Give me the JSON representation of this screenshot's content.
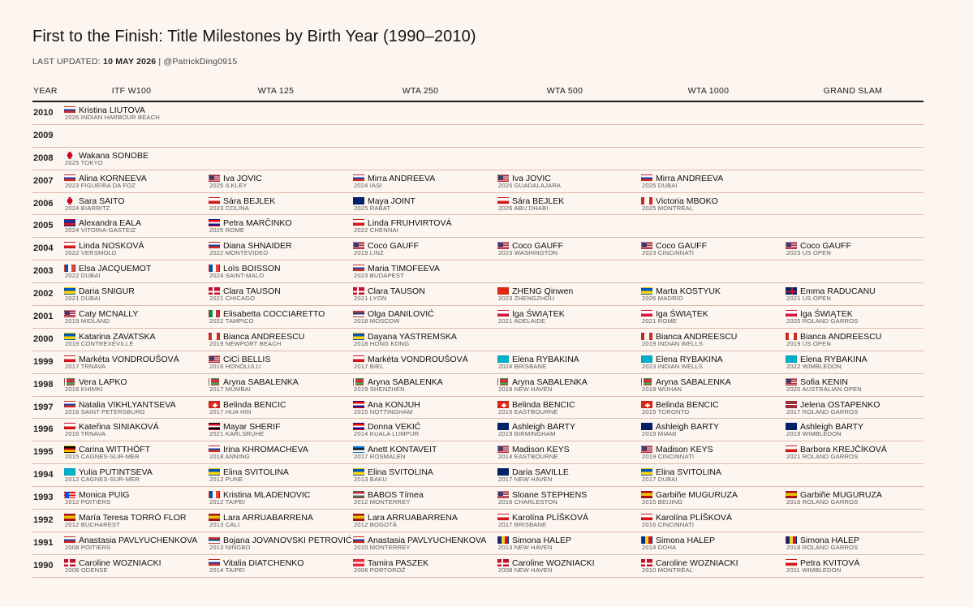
{
  "title": "First to the Finish: Title Milestones by Birth Year (1990–2010)",
  "last_updated_label": "LAST UPDATED:",
  "last_updated_date": "10 MAY 2026",
  "author": "| @PatrickDing0915",
  "columns": [
    "YEAR",
    "ITF W100",
    "WTA 125",
    "WTA 250",
    "WTA 500",
    "WTA 1000",
    "GRAND SLAM"
  ],
  "rows": [
    {
      "year": "2010",
      "cells": [
        {
          "name": "Kristina LIUTOVA",
          "event": "2026 INDIAN HARBOUR BEACH",
          "flag": "RUS"
        },
        null,
        null,
        null,
        null,
        null
      ]
    },
    {
      "year": "2009",
      "cells": [
        null,
        null,
        null,
        null,
        null,
        null
      ]
    },
    {
      "year": "2008",
      "cells": [
        {
          "name": "Wakana SONOBE",
          "event": "2025 TOKYO",
          "flag": "JPN"
        },
        null,
        null,
        null,
        null,
        null
      ]
    },
    {
      "year": "2007",
      "cells": [
        {
          "name": "Alina KORNEEVA",
          "event": "2023 FIGUEIRA DA FOZ",
          "flag": "RUS"
        },
        {
          "name": "Iva JOVIC",
          "event": "2025 ILKLEY",
          "flag": "USA"
        },
        {
          "name": "Mirra ANDREEVA",
          "event": "2024 IAȘI",
          "flag": "RUS"
        },
        {
          "name": "Iva JOVIC",
          "event": "2025 GUADALAJARA",
          "flag": "USA"
        },
        {
          "name": "Mirra ANDREEVA",
          "event": "2025 DUBAI",
          "flag": "RUS"
        },
        null
      ]
    },
    {
      "year": "2006",
      "cells": [
        {
          "name": "Sara SAITO",
          "event": "2024 BIARRITZ",
          "flag": "JPN"
        },
        {
          "name": "Sára BEJLEK",
          "event": "2023 COLINA",
          "flag": "CZE"
        },
        {
          "name": "Maya JOINT",
          "event": "2025 RABAT",
          "flag": "AUS"
        },
        {
          "name": "Sára BEJLEK",
          "event": "2026 ABU DHABI",
          "flag": "CZE"
        },
        {
          "name": "Victoria MBOKO",
          "event": "2025 MONTRÉAL",
          "flag": "CAN"
        },
        null
      ]
    },
    {
      "year": "2005",
      "cells": [
        {
          "name": "Alexandra EALA",
          "event": "2024 VITORIA-GASTEIZ",
          "flag": "PHI"
        },
        {
          "name": "Petra MARČINKO",
          "event": "2025 ROME",
          "flag": "CRO"
        },
        {
          "name": "Linda FRUHVIRTOVÁ",
          "event": "2022 CHENNAI",
          "flag": "CZE"
        },
        null,
        null,
        null
      ]
    },
    {
      "year": "2004",
      "cells": [
        {
          "name": "Linda NOSKOVÁ",
          "event": "2022 VERSMOLD",
          "flag": "CZE"
        },
        {
          "name": "Diana SHNAIDER",
          "event": "2022 MONTEVIDEO",
          "flag": "RUS"
        },
        {
          "name": "Coco GAUFF",
          "event": "2019 LINZ",
          "flag": "USA"
        },
        {
          "name": "Coco GAUFF",
          "event": "2023 WASHINGTON",
          "flag": "USA"
        },
        {
          "name": "Coco GAUFF",
          "event": "2023 CINCINNATI",
          "flag": "USA"
        },
        {
          "name": "Coco GAUFF",
          "event": "2023 US OPEN",
          "flag": "USA"
        }
      ]
    },
    {
      "year": "2003",
      "cells": [
        {
          "name": "Elsa JACQUEMOT",
          "event": "2022 DUBAI",
          "flag": "FRA"
        },
        {
          "name": "Loïs BOISSON",
          "event": "2024 SAINT-MALO",
          "flag": "FRA"
        },
        {
          "name": "Maria TIMOFEEVA",
          "event": "2023 BUDAPEST",
          "flag": "RUS"
        },
        null,
        null,
        null
      ]
    },
    {
      "year": "2002",
      "cells": [
        {
          "name": "Daria SNIGUR",
          "event": "2021 DUBAI",
          "flag": "UKR"
        },
        {
          "name": "Clara TAUSON",
          "event": "2021 CHICAGO",
          "flag": "DEN"
        },
        {
          "name": "Clara TAUSON",
          "event": "2021 LYON",
          "flag": "DEN"
        },
        {
          "name": "ZHENG Qinwen",
          "event": "2023 ZHENGZHOU",
          "flag": "CHN"
        },
        {
          "name": "Marta KOSTYUK",
          "event": "2026 MADRID",
          "flag": "UKR"
        },
        {
          "name": "Emma RADUCANU",
          "event": "2021 US OPEN",
          "flag": "GBR"
        }
      ]
    },
    {
      "year": "2001",
      "cells": [
        {
          "name": "Caty MCNALLY",
          "event": "2019 MIDLAND",
          "flag": "USA"
        },
        {
          "name": "Elisabetta COCCIARETTO",
          "event": "2022 TAMPICO",
          "flag": "ITA"
        },
        {
          "name": "Olga DANILOVIĆ",
          "event": "2018 MOSCOW",
          "flag": "SRB"
        },
        {
          "name": "Iga ŚWIĄTEK",
          "event": "2021 ADELAIDE",
          "flag": "POL"
        },
        {
          "name": "Iga ŚWIĄTEK",
          "event": "2021 ROME",
          "flag": "POL"
        },
        {
          "name": "Iga ŚWIĄTEK",
          "event": "2020 ROLAND GARROS",
          "flag": "POL"
        }
      ]
    },
    {
      "year": "2000",
      "cells": [
        {
          "name": "Katarina ZAVATSKA",
          "event": "2019 CONTREXÉVILLE",
          "flag": "UKR"
        },
        {
          "name": "Bianca ANDREESCU",
          "event": "2019 NEWPORT BEACH",
          "flag": "CAN"
        },
        {
          "name": "Dayana YASTREMSKA",
          "event": "2018 HONG KONG",
          "flag": "UKR"
        },
        null,
        {
          "name": "Bianca ANDREESCU",
          "event": "2019 INDIAN WELLS",
          "flag": "CAN"
        },
        {
          "name": "Bianca ANDREESCU",
          "event": "2019 US OPEN",
          "flag": "CAN"
        }
      ]
    },
    {
      "year": "1999",
      "cells": [
        {
          "name": "Markéta VONDROUŠOVÁ",
          "event": "2017 TRNAVA",
          "flag": "CZE"
        },
        {
          "name": "CiCi BELLIS",
          "event": "2016 HONOLULU",
          "flag": "USA"
        },
        {
          "name": "Markéta VONDROUŠOVÁ",
          "event": "2017 BIEL",
          "flag": "CZE"
        },
        {
          "name": "Elena RYBAKINA",
          "event": "2024 BRISBANE",
          "flag": "KAZ"
        },
        {
          "name": "Elena RYBAKINA",
          "event": "2023 INDIAN WELLS",
          "flag": "KAZ"
        },
        {
          "name": "Elena RYBAKINA",
          "event": "2022 WIMBLEDON",
          "flag": "KAZ"
        }
      ]
    },
    {
      "year": "1998",
      "cells": [
        {
          "name": "Vera LAPKO",
          "event": "2018 KHIMKI",
          "flag": "BLR"
        },
        {
          "name": "Aryna SABALENKA",
          "event": "2017 MUMBAI",
          "flag": "BLR"
        },
        {
          "name": "Aryna SABALENKA",
          "event": "2019 SHENZHEN",
          "flag": "BLR"
        },
        {
          "name": "Aryna SABALENKA",
          "event": "2018 NEW HAVEN",
          "flag": "BLR"
        },
        {
          "name": "Aryna SABALENKA",
          "event": "2018 WUHAN",
          "flag": "BLR"
        },
        {
          "name": "Sofia KENIN",
          "event": "2020 AUSTRALIAN OPEN",
          "flag": "USA"
        }
      ]
    },
    {
      "year": "1997",
      "cells": [
        {
          "name": "Natalia VIKHLYANTSEVA",
          "event": "2016 SAINT PETERSBURG",
          "flag": "RUS"
        },
        {
          "name": "Belinda BENCIC",
          "event": "2017 HUA HIN",
          "flag": "SUI"
        },
        {
          "name": "Ana KONJUH",
          "event": "2015 NOTTINGHAM",
          "flag": "CRO"
        },
        {
          "name": "Belinda BENCIC",
          "event": "2015 EASTBOURNE",
          "flag": "SUI"
        },
        {
          "name": "Belinda BENCIC",
          "event": "2015 TORONTO",
          "flag": "SUI"
        },
        {
          "name": "Jelena OSTAPENKO",
          "event": "2017 ROLAND GARROS",
          "flag": "LAT"
        }
      ]
    },
    {
      "year": "1996",
      "cells": [
        {
          "name": "Kateřina SINIAKOVÁ",
          "event": "2016 TRNAVA",
          "flag": "CZE"
        },
        {
          "name": "Mayar SHERIF",
          "event": "2021 KARLSRUHE",
          "flag": "EGY"
        },
        {
          "name": "Donna VEKIĆ",
          "event": "2014 KUALA LUMPUR",
          "flag": "CRO"
        },
        {
          "name": "Ashleigh BARTY",
          "event": "2019 BIRMINGHAM",
          "flag": "AUS"
        },
        {
          "name": "Ashleigh BARTY",
          "event": "2019 MIAMI",
          "flag": "AUS"
        },
        {
          "name": "Ashleigh BARTY",
          "event": "2019 WIMBLEDON",
          "flag": "AUS"
        }
      ]
    },
    {
      "year": "1995",
      "cells": [
        {
          "name": "Carina WITTHÖFT",
          "event": "2015 CAGNES-SUR-MER",
          "flag": "GER"
        },
        {
          "name": "Irina KHROMACHEVA",
          "event": "2018 ANNING",
          "flag": "RUS"
        },
        {
          "name": "Anett KONTAVEIT",
          "event": "2017 ROSMALEN",
          "flag": "EST"
        },
        {
          "name": "Madison KEYS",
          "event": "2014 EASTBOURNE",
          "flag": "USA"
        },
        {
          "name": "Madison KEYS",
          "event": "2019 CINCINNATI",
          "flag": "USA"
        },
        {
          "name": "Barbora KREJČÍKOVÁ",
          "event": "2021 ROLAND GARROS",
          "flag": "CZE"
        }
      ]
    },
    {
      "year": "1994",
      "cells": [
        {
          "name": "Yulia PUTINTSEVA",
          "event": "2012 CAGNES-SUR-MER",
          "flag": "KAZ"
        },
        {
          "name": "Elina SVITOLINA",
          "event": "2012 PUNE",
          "flag": "UKR"
        },
        {
          "name": "Elina SVITOLINA",
          "event": "2013 BAKU",
          "flag": "UKR"
        },
        {
          "name": "Daria SAVILLE",
          "event": "2017 NEW HAVEN",
          "flag": "AUS"
        },
        {
          "name": "Elina SVITOLINA",
          "event": "2017 DUBAI",
          "flag": "UKR"
        },
        null
      ]
    },
    {
      "year": "1993",
      "cells": [
        {
          "name": "Monica PUIG",
          "event": "2012 POITIERS",
          "flag": "PUR"
        },
        {
          "name": "Kristina MLADENOVIC",
          "event": "2012 TAIPEI",
          "flag": "FRA"
        },
        {
          "name": "BABOS Tímea",
          "event": "2012 MONTERREY",
          "flag": "HUN"
        },
        {
          "name": "Sloane STEPHENS",
          "event": "2016 CHARLESTON",
          "flag": "USA"
        },
        {
          "name": "Garbiñe MUGURUZA",
          "event": "2015 BEIJING",
          "flag": "ESP"
        },
        {
          "name": "Garbiñe MUGURUZA",
          "event": "2016 ROLAND GARROS",
          "flag": "ESP"
        }
      ]
    },
    {
      "year": "1992",
      "cells": [
        {
          "name": "María Teresa TORRÓ FLOR",
          "event": "2012 BUCHAREST",
          "flag": "ESP"
        },
        {
          "name": "Lara ARRUABARRENA",
          "event": "2013 CALI",
          "flag": "ESP"
        },
        {
          "name": "Lara ARRUABARRENA",
          "event": "2012 BOGOTÁ",
          "flag": "ESP"
        },
        {
          "name": "Karolína PLÍŠKOVÁ",
          "event": "2017 BRISBANE",
          "flag": "CZE"
        },
        {
          "name": "Karolína PLÍŠKOVÁ",
          "event": "2016 CINCINNATI",
          "flag": "CZE"
        },
        null
      ]
    },
    {
      "year": "1991",
      "cells": [
        {
          "name": "Anastasia PAVLYUCHENKOVA",
          "event": "2008 POITIERS",
          "flag": "RUS"
        },
        {
          "name": "Bojana JOVANOVSKI PETROVIĆ",
          "event": "2013 NINGBO",
          "flag": "SRB"
        },
        {
          "name": "Anastasia PAVLYUCHENKOVA",
          "event": "2010 MONTERREY",
          "flag": "RUS"
        },
        {
          "name": "Simona HALEP",
          "event": "2013 NEW HAVEN",
          "flag": "ROU"
        },
        {
          "name": "Simona HALEP",
          "event": "2014 DOHA",
          "flag": "ROU"
        },
        {
          "name": "Simona HALEP",
          "event": "2018 ROLAND GARROS",
          "flag": "ROU"
        }
      ]
    },
    {
      "year": "1990",
      "cells": [
        {
          "name": "Caroline WOZNIACKI",
          "event": "2008 ODENSE",
          "flag": "DEN"
        },
        {
          "name": "Vitalia DIATCHENKO",
          "event": "2014 TAIPEI",
          "flag": "RUS"
        },
        {
          "name": "Tamira PASZEK",
          "event": "2006 PORTOROŽ",
          "flag": "AUT"
        },
        {
          "name": "Caroline WOZNIACKI",
          "event": "2008 NEW HAVEN",
          "flag": "DEN"
        },
        {
          "name": "Caroline WOZNIACKI",
          "event": "2010 MONTRÉAL",
          "flag": "DEN"
        },
        {
          "name": "Petra KVITOVÁ",
          "event": "2011 WIMBLEDON",
          "flag": "CZE"
        }
      ]
    }
  ],
  "flag_styles": {
    "RUS": "linear-gradient(#ffffff 0 33.3%, #1c3fa8 33.3% 66.6%, #d52b1e 66.6%)",
    "JPN": "radial-gradient(circle, #d0021b 0 3.2px, #ffffff 3.6px)",
    "USA": "linear-gradient(#3c3b6e, #3c3b6e) 0 0 / 6px 5px no-repeat, repeating-linear-gradient(#b22234 0 1.3px, #ffffff 1.3px 2.6px)",
    "CZE": "linear-gradient(60deg, transparent 0, transparent 0), linear-gradient(#ffffff 0 50%, #d7141a 50%)",
    "AUS": "linear-gradient(#012169, #012169)",
    "CAN": "linear-gradient(90deg, #d52b1e 0 25%, #ffffff 25% 75%, #d52b1e 75%)",
    "PHI": "linear-gradient(#0038a8 0 50%, #ce1126 50%)",
    "CRO": "linear-gradient(#ff0000 0 33.3%, #ffffff 33.3% 66.6%, #171796 66.6%)",
    "FRA": "linear-gradient(90deg, #0055a4 0 33.3%, #ffffff 33.3% 66.6%, #ef4135 66.6%)",
    "UKR": "linear-gradient(#0057b7 0 50%, #ffd700 50%)",
    "DEN": "linear-gradient(90deg, transparent 0 4px, #ffffff 4px 6px, transparent 6px), linear-gradient(transparent 0 3.5px, #ffffff 3.5px 5.5px, transparent 5.5px), linear-gradient(#c8102e, #c8102e)",
    "CHN": "linear-gradient(#de2910, #de2910)",
    "GBR": "linear-gradient(90deg, transparent 0 6px, #c8102e 6px 8px, transparent 8px), linear-gradient(transparent 0 3.5px, #c8102e 3.5px 5.5px, transparent 5.5px), linear-gradient(#012169, #012169)",
    "ITA": "linear-gradient(90deg, #009246 0 33.3%, #ffffff 33.3% 66.6%, #ce2b37 66.6%)",
    "SRB": "linear-gradient(#c6363c 0 33.3%, #0c4076 33.3% 66.6%, #ffffff 66.6%)",
    "POL": "linear-gradient(#ffffff 0 50%, #dc143c 50%)",
    "KAZ": "linear-gradient(#00afca, #00afca)",
    "BLR": "linear-gradient(90deg, #ffffff 0 2px, transparent 2px), linear-gradient(#c8313e 0 66%, #4aa657 66%)",
    "SUI": "linear-gradient(90deg, transparent 0 6px, #ffffff 6px 8px, transparent 8px) 0 2px / 14px 5px no-repeat, linear-gradient(transparent 0 3.5px, #ffffff 3.5px 5.5px, transparent 5.5px) 4px 0 / 6px 9px no-repeat, linear-gradient(#da291c, #da291c)",
    "LAT": "linear-gradient(#9e3039 0 40%, #ffffff 40% 60%, #9e3039 60%)",
    "EGY": "linear-gradient(#ce1126 0 33.3%, #ffffff 33.3% 66.6%, #000000 66.6%)",
    "GER": "linear-gradient(#000000 0 33.3%, #dd0000 33.3% 66.6%, #ffce00 66.6%)",
    "EST": "linear-gradient(#0072ce 0 33.3%, #000000 33.3% 66.6%, #ffffff 66.6%)",
    "PUR": "linear-gradient(#0050f0, #0050f0) 0 0 / 5px 9px no-repeat, repeating-linear-gradient(#ed0000 0 1.8px, #ffffff 1.8px 3.6px)",
    "HUN": "linear-gradient(#cd2a3e 0 33.3%, #ffffff 33.3% 66.6%, #436f4d 66.6%)",
    "ESP": "linear-gradient(#aa151b 0 25%, #f1bf00 25% 75%, #aa151b 75%)",
    "ROU": "linear-gradient(90deg, #002b7f 0 33.3%, #fcd116 33.3% 66.6%, #ce1126 66.6%)",
    "AUT": "linear-gradient(#ed2939 0 33.3%, #ffffff 33.3% 66.6%, #ed2939 66.6%)"
  }
}
